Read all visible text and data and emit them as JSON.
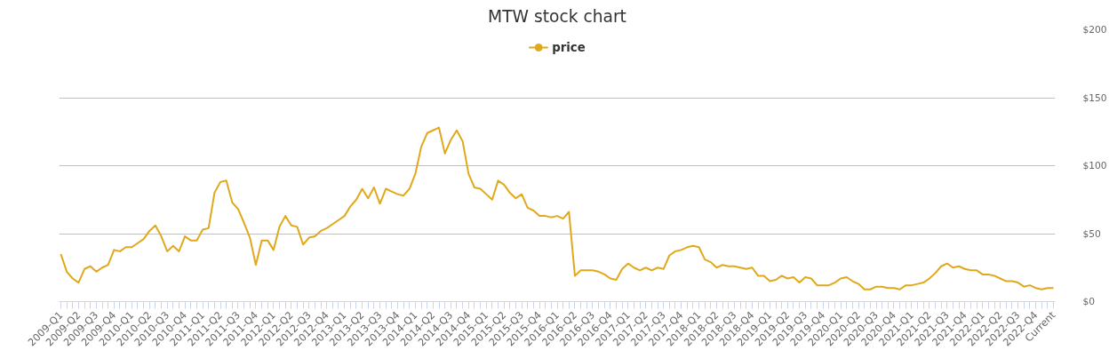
{
  "chart_data": {
    "type": "line",
    "title": "MTW stock chart",
    "categories": [
      "2009-Q1",
      null,
      null,
      "2009-Q2",
      null,
      null,
      "2009-Q3",
      null,
      null,
      "2009-Q4",
      null,
      null,
      "2010-Q1",
      null,
      null,
      "2010-Q2",
      null,
      null,
      "2010-Q3",
      null,
      null,
      "2010-Q4",
      null,
      null,
      "2011-Q1",
      null,
      null,
      "2011-Q2",
      null,
      null,
      "2011-Q3",
      null,
      null,
      "2011-Q4",
      null,
      null,
      "2012-Q1",
      null,
      null,
      "2012-Q2",
      null,
      null,
      "2012-Q3",
      null,
      null,
      "2012-Q4",
      null,
      null,
      "2013-Q1",
      null,
      null,
      "2013-Q2",
      null,
      null,
      "2013-Q3",
      null,
      null,
      "2013-Q4",
      null,
      null,
      "2014-Q1",
      null,
      null,
      "2014-Q2",
      null,
      null,
      "2014-Q3",
      null,
      null,
      "2014-Q4",
      null,
      null,
      "2015-Q1",
      null,
      null,
      "2015-Q2",
      null,
      null,
      "2015-Q3",
      null,
      null,
      "2015-Q4",
      null,
      null,
      "2016-Q1",
      null,
      null,
      "2016-Q2",
      null,
      null,
      "2016-Q3",
      null,
      null,
      "2016-Q4",
      null,
      null,
      "2017-Q1",
      null,
      null,
      "2017-Q2",
      null,
      null,
      "2017-Q3",
      null,
      null,
      "2017-Q4",
      null,
      null,
      "2018-Q1",
      null,
      null,
      "2018-Q2",
      null,
      null,
      "2018-Q3",
      null,
      null,
      "2018-Q4",
      null,
      null,
      "2019-Q1",
      null,
      null,
      "2019-Q2",
      null,
      null,
      "2019-Q3",
      null,
      null,
      "2019-Q4",
      null,
      null,
      "2020-Q1",
      null,
      null,
      "2020-Q2",
      null,
      null,
      "2020-Q3",
      null,
      null,
      "2020-Q4",
      null,
      null,
      "2021-Q1",
      null,
      null,
      "2021-Q2",
      null,
      null,
      "2021-Q3",
      null,
      null,
      "2021-Q4",
      null,
      null,
      "2022-Q1",
      null,
      null,
      "2022-Q2",
      null,
      null,
      "2022-Q3",
      null,
      null,
      "2022-Q4",
      null,
      null,
      "Current"
    ],
    "series": [
      {
        "name": "price",
        "color": "#e0a91c",
        "values": [
          35,
          22,
          17,
          14,
          24,
          26,
          22,
          25,
          27,
          38,
          37,
          40,
          40,
          43,
          46,
          52,
          56,
          48,
          37,
          41,
          37,
          48,
          45,
          45,
          53,
          54,
          80,
          88,
          89,
          73,
          68,
          58,
          47,
          27,
          45,
          45,
          38,
          55,
          63,
          56,
          55,
          42,
          47,
          48,
          52,
          54,
          57,
          60,
          63,
          70,
          75,
          83,
          76,
          84,
          72,
          83,
          81,
          79,
          78,
          83,
          94,
          114,
          124,
          126,
          128,
          109,
          119,
          126,
          118,
          94,
          84,
          83,
          79,
          75,
          89,
          86,
          80,
          76,
          79,
          69,
          67,
          63,
          63,
          62,
          63,
          61,
          66,
          19,
          23,
          23,
          23,
          22,
          20,
          17,
          16,
          24,
          28,
          25,
          23,
          25,
          23,
          25,
          24,
          34,
          37,
          38,
          40,
          41,
          40,
          31,
          29,
          25,
          27,
          26,
          26,
          25,
          24,
          25,
          19,
          19,
          15,
          16,
          19,
          17,
          18,
          14,
          18,
          17,
          12,
          12,
          12,
          14,
          17,
          18,
          15,
          13,
          9,
          9,
          11,
          11,
          10,
          10,
          9,
          12,
          12,
          13,
          14,
          17,
          21,
          26,
          28,
          25,
          26,
          24,
          23,
          23,
          20,
          20,
          19,
          17,
          15,
          15,
          14,
          11,
          12,
          10,
          9,
          10,
          10
        ]
      }
    ],
    "ylim": [
      0,
      200
    ],
    "yticks": [
      {
        "value": 0,
        "label": "$0"
      },
      {
        "value": 50,
        "label": "$50"
      },
      {
        "value": 100,
        "label": "$100"
      },
      {
        "value": 150,
        "label": "$150"
      },
      {
        "value": 200,
        "label": "$200"
      }
    ],
    "grid": "y",
    "legend": "top",
    "line_style": "solid"
  }
}
